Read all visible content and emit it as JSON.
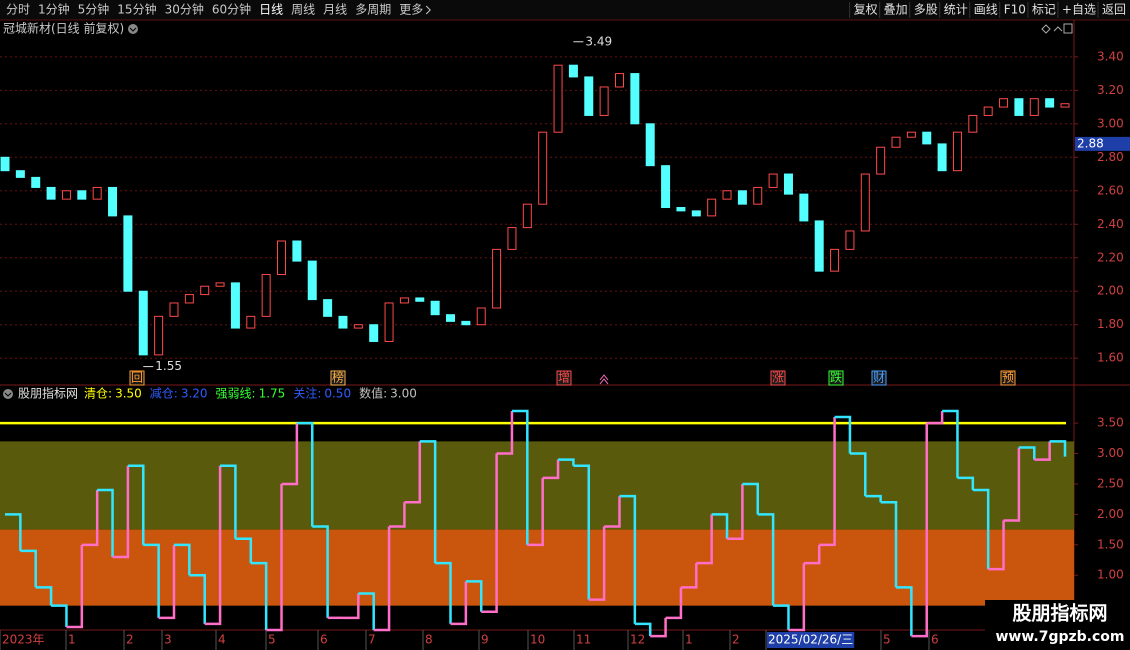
{
  "toolbar": {
    "left": [
      "分时",
      "1分钟",
      "5分钟",
      "15分钟",
      "30分钟",
      "60分钟",
      "日线",
      "周线",
      "月线",
      "多周期",
      "更多"
    ],
    "right": [
      "复权",
      "叠加",
      "多股",
      "统计",
      "画线",
      "F10",
      "标记",
      "+自选",
      "返回"
    ],
    "active": 6
  },
  "stock_title": "冠城新材(日线 前复权)",
  "x_labels": [
    "2023年",
    "1",
    "2",
    "3",
    "4",
    "5",
    "6",
    "7",
    "8",
    "9",
    "10",
    "11",
    "12",
    "1",
    "2",
    "2025/02/26/三",
    "5",
    "6"
  ],
  "x_label_highlight": 15,
  "watermark": {
    "title": "股朋指标网",
    "url": "www.7gpzb.com"
  },
  "chart_data": [
    {
      "type": "candlestick",
      "ylim": [
        1.44,
        3.62
      ],
      "yticks": [
        {
          "value": 3.4,
          "label": "3.40"
        },
        {
          "value": 3.2,
          "label": "3.20"
        },
        {
          "value": 3.0,
          "label": "3.00"
        },
        {
          "value": 2.8,
          "label": "2.80"
        },
        {
          "value": 2.6,
          "label": "2.60"
        },
        {
          "value": 2.4,
          "label": "2.40"
        },
        {
          "value": 2.2,
          "label": "2.20"
        },
        {
          "value": 2.0,
          "label": "2.00"
        },
        {
          "value": 1.8,
          "label": "1.80"
        },
        {
          "value": 1.6,
          "label": "1.60"
        }
      ],
      "grid": true,
      "up_color": "#ff4a4a",
      "down_color": "#54ffff",
      "open": [
        2.8,
        2.72,
        2.68,
        2.62,
        2.55,
        2.6,
        2.55,
        2.62,
        2.45,
        2.0,
        1.62,
        1.85,
        1.93,
        1.98,
        2.03,
        2.05,
        1.78,
        1.85,
        2.1,
        2.3,
        2.18,
        1.95,
        1.85,
        1.78,
        1.8,
        1.7,
        1.93,
        1.96,
        1.94,
        1.86,
        1.82,
        1.8,
        1.9,
        2.25,
        2.38,
        2.52,
        2.95,
        3.35,
        3.28,
        3.05,
        3.22,
        3.3,
        3.0,
        2.75,
        2.5,
        2.48,
        2.45,
        2.55,
        2.6,
        2.52,
        2.62,
        2.7,
        2.58,
        2.42,
        2.12,
        2.25,
        2.36,
        2.7,
        2.86,
        2.92,
        2.95,
        2.88,
        2.72,
        2.95,
        3.05,
        3.1,
        3.15,
        3.05,
        3.15,
        3.1
      ],
      "close": [
        2.72,
        2.68,
        2.62,
        2.55,
        2.6,
        2.55,
        2.62,
        2.45,
        2.0,
        1.62,
        1.85,
        1.93,
        1.98,
        2.03,
        2.05,
        1.78,
        1.85,
        2.1,
        2.3,
        2.18,
        1.95,
        1.85,
        1.78,
        1.8,
        1.7,
        1.93,
        1.96,
        1.94,
        1.86,
        1.82,
        1.8,
        1.9,
        2.25,
        2.38,
        2.52,
        2.95,
        3.35,
        3.28,
        3.05,
        3.22,
        3.3,
        3.0,
        2.75,
        2.5,
        2.48,
        2.45,
        2.55,
        2.6,
        2.52,
        2.62,
        2.7,
        2.58,
        2.42,
        2.12,
        2.25,
        2.36,
        2.7,
        2.86,
        2.92,
        2.95,
        2.88,
        2.72,
        2.95,
        3.05,
        3.1,
        3.15,
        3.05,
        3.15,
        3.1,
        3.12
      ],
      "annotations": [
        {
          "value": 3.49,
          "label": "3.49"
        },
        {
          "value": 1.55,
          "label": "1.55"
        }
      ],
      "current_price": {
        "value": 2.88,
        "label": "2.88"
      },
      "markers": [
        {
          "text": "回",
          "color": "#ff9a2e"
        },
        {
          "text": "榜",
          "color": "#ffb347"
        },
        {
          "text": "增",
          "color": "#ff4a4a"
        },
        {
          "text": "涨",
          "color": "#ff4a4a"
        },
        {
          "text": "跌",
          "color": "#33ff33"
        },
        {
          "text": "财",
          "color": "#4aa0ff"
        },
        {
          "text": "预",
          "color": "#ff9a2e"
        }
      ]
    },
    {
      "type": "step-line",
      "title": "股朋指标网",
      "ylim": [
        0.1,
        3.88
      ],
      "yticks": [
        {
          "value": 3.5,
          "label": "3.50"
        },
        {
          "value": 3.0,
          "label": "3.00"
        },
        {
          "value": 2.5,
          "label": "2.50"
        },
        {
          "value": 2.0,
          "label": "2.00"
        },
        {
          "value": 1.5,
          "label": "1.50"
        },
        {
          "value": 1.0,
          "label": "1.00"
        }
      ],
      "levels": [
        {
          "name": "清仓:",
          "value": 3.5,
          "value_label": "3.50",
          "color": "#ffff00"
        },
        {
          "name": "减仓:",
          "value": 3.2,
          "value_label": "3.20",
          "color": "#2f5cff"
        },
        {
          "name": "强弱线:",
          "value": 1.75,
          "value_label": "1.75",
          "color": "#33ff33"
        },
        {
          "name": "关注:",
          "value": 0.5,
          "value_label": "0.50",
          "color": "#2f5cff"
        },
        {
          "name": "数值:",
          "value": 3.0,
          "value_label": "3.00",
          "color": "#c0c0c0"
        }
      ],
      "band_colors": [
        "#5a5a0c",
        "#c9560c"
      ],
      "up_color": "#ff6ec7",
      "down_color": "#33e6ff",
      "values": [
        2.0,
        1.4,
        0.8,
        0.5,
        0.15,
        1.5,
        2.4,
        1.3,
        2.8,
        1.5,
        0.3,
        1.5,
        1.0,
        0.2,
        2.8,
        1.6,
        1.2,
        0.1,
        2.5,
        3.5,
        1.8,
        0.3,
        0.3,
        0.7,
        0.1,
        1.8,
        2.2,
        3.2,
        1.2,
        0.2,
        0.9,
        0.4,
        3.0,
        3.7,
        1.5,
        2.6,
        2.9,
        2.8,
        0.6,
        1.8,
        2.3,
        0.2,
        0.0,
        0.3,
        0.8,
        1.2,
        2.0,
        1.6,
        2.5,
        2.0,
        0.5,
        0.1,
        1.2,
        1.5,
        3.6,
        3.0,
        2.3,
        2.2,
        0.8,
        0.0,
        3.5,
        3.7,
        2.6,
        2.4,
        1.1,
        1.9,
        3.1,
        2.9,
        3.2,
        2.95
      ]
    }
  ]
}
